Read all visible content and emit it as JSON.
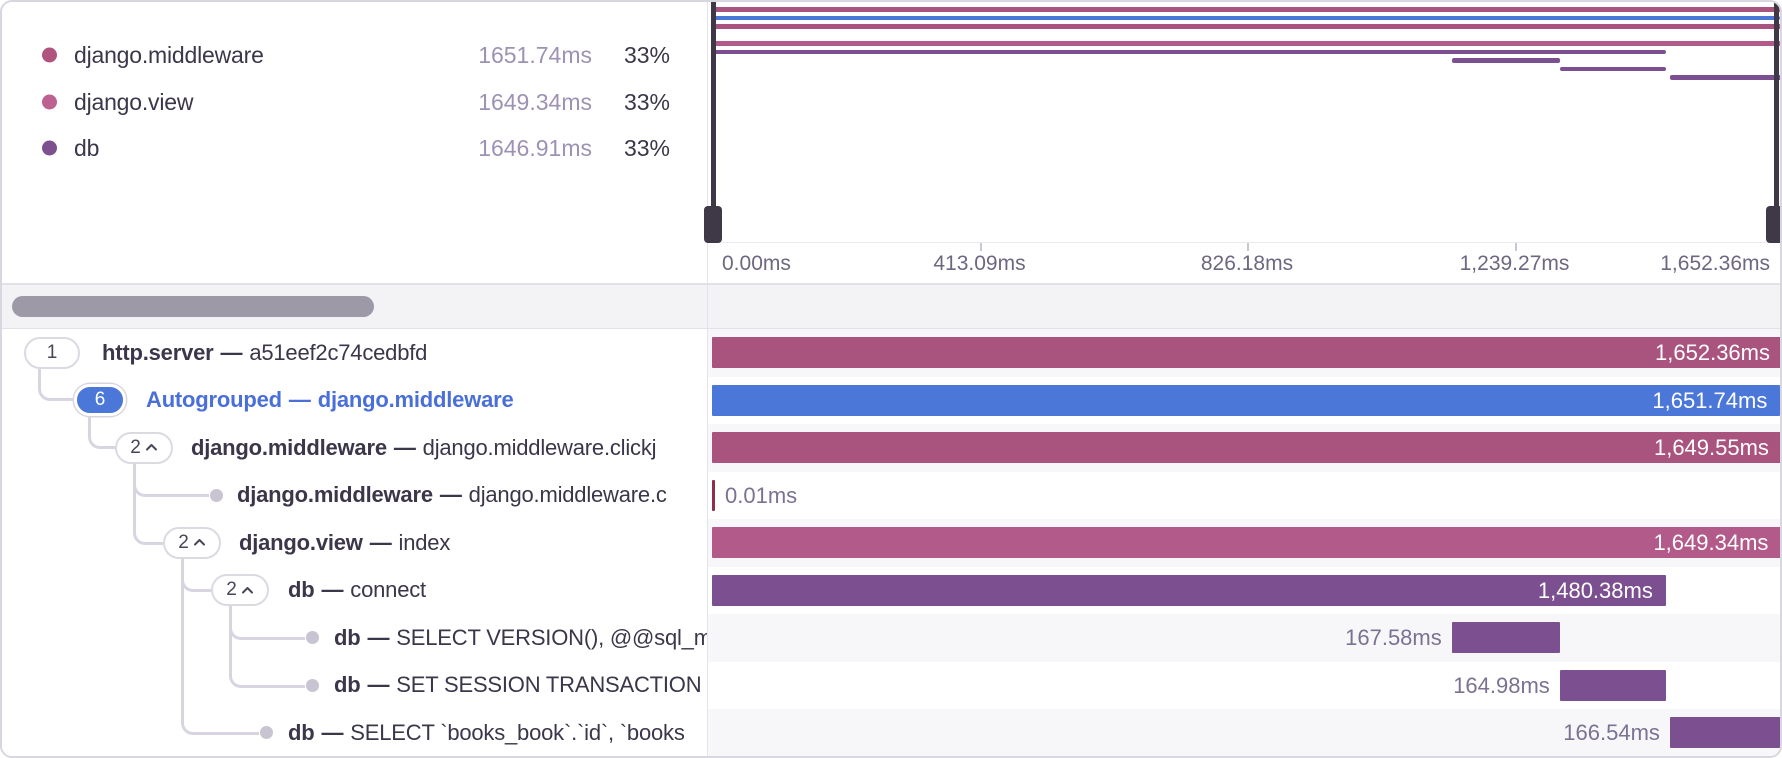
{
  "separator": "—",
  "colors": {
    "http_server": "#a9537f",
    "middleware": "#a9537f",
    "view": "#b25a89",
    "db": "#7c5090",
    "autogroup_blue": "#4b77d9",
    "tiny_span_red": "#8f2f4c"
  },
  "legend": {
    "items": [
      {
        "label": "django.middleware",
        "duration": "1651.74ms",
        "percent": "33%",
        "color": "#b0537f"
      },
      {
        "label": "django.view",
        "duration": "1649.34ms",
        "percent": "33%",
        "color": "#bd6190"
      },
      {
        "label": "db",
        "duration": "1646.91ms",
        "percent": "33%",
        "color": "#7d5190"
      }
    ]
  },
  "axis": {
    "labels": [
      "0.00ms",
      "413.09ms",
      "826.18ms",
      "1,239.27ms",
      "1,652.36ms"
    ]
  },
  "rows": [
    {
      "op": "http.server",
      "desc": "a51eef2c74cedbfd",
      "badge": "1",
      "chevron": false,
      "duration": "1,652.36ms",
      "placement": "inside",
      "start": 0,
      "end": 1.0,
      "color": "http_server"
    },
    {
      "op": "Autogrouped",
      "desc": "django.middleware",
      "badge": "6",
      "chevron": false,
      "blue": true,
      "duration": "1,651.74ms",
      "placement": "inside",
      "start": 0,
      "end": 0.9975,
      "color": "autogroup_blue"
    },
    {
      "op": "django.middleware",
      "desc": "django.middleware.clickj",
      "badge": "2",
      "chevron": true,
      "duration": "1,649.55ms",
      "placement": "inside",
      "start": 0,
      "end": 0.999,
      "color": "middleware"
    },
    {
      "op": "django.middleware",
      "desc": "django.middleware.c",
      "leaf": true,
      "duration": "0.01ms",
      "placement": "after",
      "start": 0,
      "end": 0.0028,
      "color": "tiny_span_red"
    },
    {
      "op": "django.view",
      "desc": "index",
      "badge": "2",
      "chevron": true,
      "duration": "1,649.34ms",
      "placement": "inside",
      "start": 0,
      "end": 0.9985,
      "color": "view"
    },
    {
      "op": "db",
      "desc": "connect",
      "badge": "2",
      "chevron": true,
      "duration": "1,480.38ms",
      "placement": "inside",
      "start": 0,
      "end": 0.8906,
      "color": "db"
    },
    {
      "op": "db",
      "desc": "SELECT VERSION(), @@sql_m",
      "leaf": true,
      "duration": "167.58ms",
      "placement": "before",
      "start": 0.6907,
      "end": 0.7916,
      "color": "db"
    },
    {
      "op": "db",
      "desc": "SET SESSION TRANSACTION",
      "leaf": true,
      "duration": "164.98ms",
      "placement": "before",
      "start": 0.7916,
      "end": 0.8907,
      "color": "db"
    },
    {
      "op": "db",
      "desc": "SELECT `books_book`.`id`, `books",
      "leaf": true,
      "duration": "166.54ms",
      "placement": "before",
      "start": 0.8944,
      "end": 0.998,
      "color": "db"
    }
  ]
}
